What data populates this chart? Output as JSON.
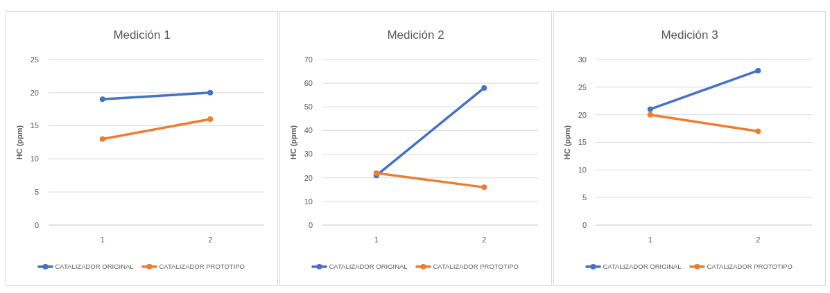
{
  "chart_data": [
    {
      "type": "line",
      "title": "Medición 1",
      "ylabel": "HC (ppm)",
      "categories": [
        "1",
        "2"
      ],
      "ylim": [
        0,
        25
      ],
      "yticks": [
        0,
        5,
        10,
        15,
        20,
        25
      ],
      "grid": "y",
      "legend": "bottom",
      "marker": "circle",
      "series": [
        {
          "name": "CATALIZADOR ORIGINAL",
          "color": "#4472c4",
          "values": [
            19,
            20
          ]
        },
        {
          "name": "CATALIZADOR PROTOTIPO",
          "color": "#ed7d31",
          "values": [
            13,
            16
          ]
        }
      ]
    },
    {
      "type": "line",
      "title": "Medición 2",
      "ylabel": "HC (ppm)",
      "categories": [
        "1",
        "2"
      ],
      "ylim": [
        0,
        70
      ],
      "yticks": [
        0,
        10,
        20,
        30,
        40,
        50,
        60,
        70
      ],
      "grid": "y",
      "legend": "bottom",
      "marker": "circle",
      "series": [
        {
          "name": "CATALIZADOR ORIGINAL",
          "color": "#4472c4",
          "values": [
            21,
            58
          ]
        },
        {
          "name": "CATALIZADOR PROTOTIPO",
          "color": "#ed7d31",
          "values": [
            22,
            16
          ]
        }
      ]
    },
    {
      "type": "line",
      "title": "Medición 3",
      "ylabel": "HC (ppm)",
      "categories": [
        "1",
        "2"
      ],
      "ylim": [
        0,
        30
      ],
      "yticks": [
        0,
        5,
        10,
        15,
        20,
        25,
        30
      ],
      "grid": "y",
      "legend": "bottom",
      "marker": "circle",
      "series": [
        {
          "name": "CATALIZADOR ORIGINAL",
          "color": "#4472c4",
          "values": [
            21,
            28
          ]
        },
        {
          "name": "CATALIZADOR PROTOTIPO",
          "color": "#ed7d31",
          "values": [
            20,
            17
          ]
        }
      ]
    }
  ]
}
